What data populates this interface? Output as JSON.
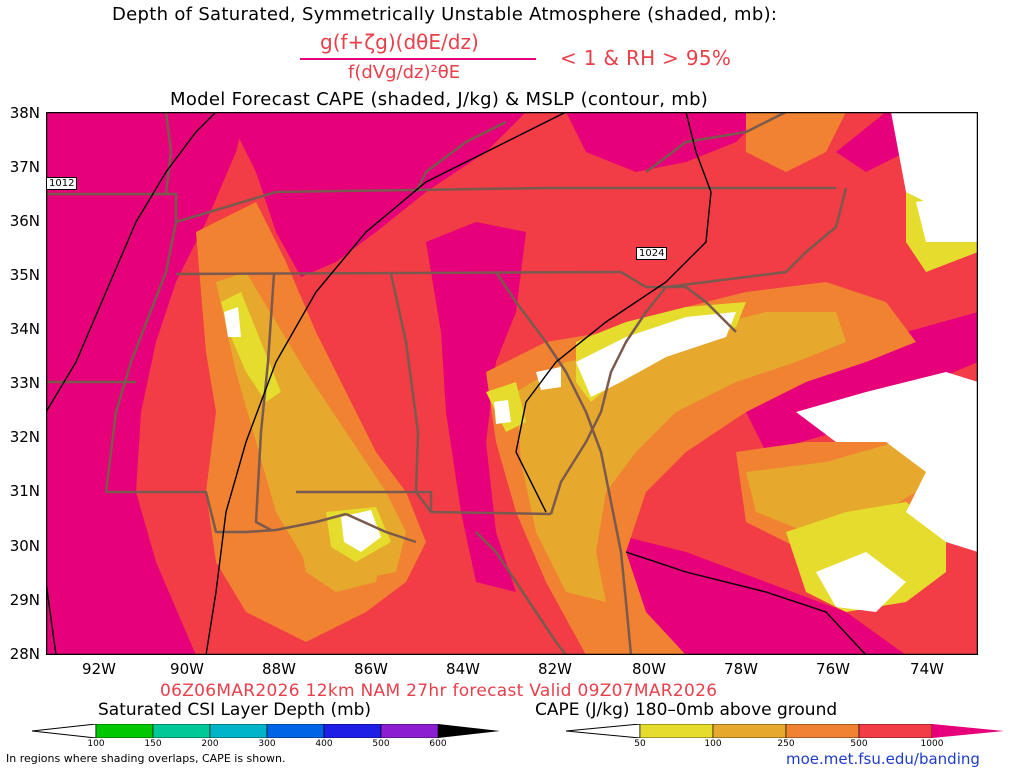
{
  "header": {
    "line1": "Depth of Saturated, Symmetrically Unstable Atmosphere (shaded, mb):",
    "numerator": "g(f+ζg)(dθE/dz)",
    "denominator": "f(dVg/dz)²θE",
    "condition": "< 1 & RH > 95%",
    "line3": "Model Forecast CAPE (shaded, J/kg) & MSLP (contour, mb)"
  },
  "map": {
    "lat_labels": [
      "38N",
      "37N",
      "36N",
      "35N",
      "34N",
      "33N",
      "32N",
      "31N",
      "30N",
      "29N",
      "28N"
    ],
    "lon_labels": [
      "92W",
      "90W",
      "88W",
      "86W",
      "84W",
      "82W",
      "80W",
      "78W",
      "76W",
      "74W"
    ],
    "contour_labels": [
      "1012",
      "1024"
    ],
    "colors": {
      "magenta": "#e6007a",
      "red": "#f23c46",
      "orange": "#f08232",
      "gold": "#e6a82d",
      "yellow": "#e6dc2d",
      "boundary": "#7a5a4e"
    }
  },
  "footer": {
    "run_info": "06Z06MAR2026 12km NAM 27hr forecast Valid 09Z07MAR2026",
    "csi_title": "Saturated CSI Layer Depth (mb)",
    "csi_ticks": [
      "100",
      "150",
      "200",
      "300",
      "400",
      "500",
      "600"
    ],
    "cape_title": "CAPE (J/kg) 180–0mb above ground",
    "cape_ticks": [
      "50",
      "100",
      "250",
      "500",
      "1000"
    ],
    "note": "In regions where shading overlaps, CAPE is shown.",
    "url": "moe.met.fsu.edu/banding"
  }
}
